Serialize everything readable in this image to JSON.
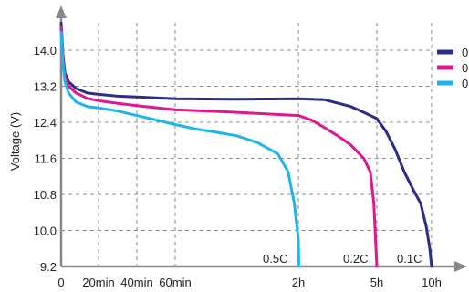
{
  "chart_data": {
    "type": "line",
    "title": "",
    "ylabel": "Voltage (V)",
    "xlabel": "",
    "ylim": [
      9.2,
      14.0
    ],
    "yticks": [
      9.2,
      10.0,
      10.8,
      11.6,
      12.4,
      13.2,
      14.0
    ],
    "ytick_labels": [
      "9.2",
      "10.0",
      "10.8",
      "11.6",
      "12.4",
      "13.2",
      "14.0"
    ],
    "xticks": [
      {
        "label": "0",
        "t": 0
      },
      {
        "label": "20min",
        "t": 20
      },
      {
        "label": "40min",
        "t": 40
      },
      {
        "label": "60min",
        "t": 60
      },
      {
        "label": "2h",
        "t": 120
      },
      {
        "label": "5h",
        "t": 300
      },
      {
        "label": "10h",
        "t": 600
      }
    ],
    "x_unit": "minutes",
    "grid": true,
    "legend_position": "top-right",
    "legend_labels": [
      "0",
      "0",
      "0"
    ],
    "annotations": [
      "0.5C",
      "0.2C",
      "0.1C"
    ],
    "series": [
      {
        "color": "#2b2d86",
        "points": [
          [
            0,
            14.6
          ],
          [
            1,
            13.9
          ],
          [
            2,
            13.5
          ],
          [
            4,
            13.3
          ],
          [
            8,
            13.15
          ],
          [
            14,
            13.05
          ],
          [
            20,
            13.02
          ],
          [
            30,
            12.98
          ],
          [
            40,
            12.96
          ],
          [
            60,
            12.92
          ],
          [
            90,
            12.91
          ],
          [
            120,
            12.92
          ],
          [
            180,
            12.9
          ],
          [
            240,
            12.75
          ],
          [
            270,
            12.62
          ],
          [
            300,
            12.48
          ],
          [
            350,
            12.2
          ],
          [
            400,
            11.8
          ],
          [
            450,
            11.3
          ],
          [
            500,
            10.9
          ],
          [
            540,
            10.6
          ],
          [
            570,
            10.1
          ],
          [
            590,
            9.6
          ],
          [
            600,
            9.2
          ]
        ]
      },
      {
        "color": "#e0168f",
        "points": [
          [
            0,
            14.5
          ],
          [
            1,
            13.8
          ],
          [
            2,
            13.4
          ],
          [
            4,
            13.2
          ],
          [
            8,
            13.05
          ],
          [
            14,
            12.93
          ],
          [
            20,
            12.88
          ],
          [
            30,
            12.82
          ],
          [
            40,
            12.77
          ],
          [
            60,
            12.68
          ],
          [
            90,
            12.62
          ],
          [
            120,
            12.55
          ],
          [
            150,
            12.45
          ],
          [
            180,
            12.28
          ],
          [
            210,
            12.1
          ],
          [
            240,
            11.9
          ],
          [
            270,
            11.6
          ],
          [
            285,
            11.3
          ],
          [
            293,
            10.6
          ],
          [
            297,
            9.8
          ],
          [
            300,
            9.2
          ]
        ]
      },
      {
        "color": "#1fb4ea",
        "points": [
          [
            0,
            14.4
          ],
          [
            1,
            13.7
          ],
          [
            2,
            13.3
          ],
          [
            4,
            13.05
          ],
          [
            8,
            12.85
          ],
          [
            14,
            12.75
          ],
          [
            20,
            12.72
          ],
          [
            30,
            12.65
          ],
          [
            40,
            12.55
          ],
          [
            50,
            12.45
          ],
          [
            60,
            12.35
          ],
          [
            70,
            12.25
          ],
          [
            80,
            12.18
          ],
          [
            90,
            12.1
          ],
          [
            100,
            11.95
          ],
          [
            110,
            11.7
          ],
          [
            115,
            11.3
          ],
          [
            118,
            10.6
          ],
          [
            120,
            9.8
          ],
          [
            121,
            9.2
          ]
        ]
      }
    ]
  }
}
